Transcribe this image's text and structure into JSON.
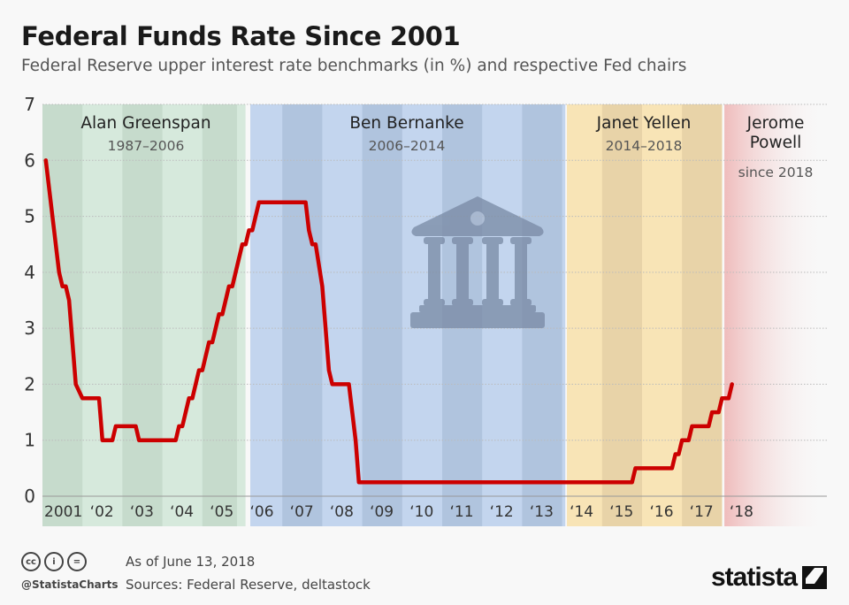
{
  "header": {
    "title": "Federal Funds Rate Since 2001",
    "subtitle": "Federal Reserve upper interest rate benchmarks (in %) and respective Fed chairs"
  },
  "chart_data": {
    "type": "line",
    "title": "Federal Funds Rate Since 2001",
    "xlabel": "",
    "ylabel": "",
    "ylim": [
      0,
      7
    ],
    "yticks": [
      "0",
      "1",
      "2",
      "3",
      "4",
      "5",
      "6",
      "7"
    ],
    "xticks": [
      "2001",
      "'02",
      "'03",
      "'04",
      "'05",
      "'06",
      "'07",
      "'08",
      "'09",
      "'10",
      "'11",
      "'12",
      "'13",
      "'14",
      "'15",
      "'16",
      "'17",
      "'18"
    ],
    "grid": true,
    "line_color": "#cc0000",
    "eras": [
      {
        "name": "Alan Greenspan",
        "term": "1987–2006",
        "color_light": "#d6e9dc",
        "color_dark": "#c6dbcc"
      },
      {
        "name": "Ben Bernanke",
        "term": "2006–2014",
        "color_light": "#c3d5ee",
        "color_dark": "#b0c4de"
      },
      {
        "name": "Janet Yellen",
        "term": "2014–2018",
        "color_light": "#f8e4b6",
        "color_dark": "#e8d3a8"
      },
      {
        "name_lines": [
          "Jerome",
          "Powell"
        ],
        "term": "since 2018",
        "color_light": "#f0c4c4",
        "color_dark": "#f0c4c4"
      }
    ],
    "series": [
      {
        "points": [
          [
            "2001-02",
            6.0
          ],
          [
            "2001-06",
            4.0
          ],
          [
            "2001-07",
            3.75
          ],
          [
            "2001-08",
            3.75
          ],
          [
            "2001-09",
            3.5
          ],
          [
            "2001-11",
            2.0
          ],
          [
            "2002-01",
            1.75
          ],
          [
            "2002-06",
            1.75
          ],
          [
            "2002-07",
            1.0
          ],
          [
            "2002-10",
            1.0
          ],
          [
            "2002-11",
            1.25
          ],
          [
            "2003-05",
            1.25
          ],
          [
            "2003-06",
            1.0
          ],
          [
            "2004-05",
            1.0
          ],
          [
            "2004-06",
            1.25
          ],
          [
            "2004-07",
            1.25
          ],
          [
            "2004-09",
            1.75
          ],
          [
            "2004-10",
            1.75
          ],
          [
            "2004-12",
            2.25
          ],
          [
            "2005-01",
            2.25
          ],
          [
            "2005-03",
            2.75
          ],
          [
            "2005-04",
            2.75
          ],
          [
            "2005-06",
            3.25
          ],
          [
            "2005-07",
            3.25
          ],
          [
            "2005-09",
            3.75
          ],
          [
            "2005-10",
            3.75
          ],
          [
            "2006-01",
            4.5
          ],
          [
            "2006-02",
            4.5
          ],
          [
            "2006-03",
            4.75
          ],
          [
            "2006-04",
            4.75
          ],
          [
            "2006-06",
            5.25
          ],
          [
            "2007-08",
            5.25
          ],
          [
            "2007-09",
            4.75
          ],
          [
            "2007-10",
            4.5
          ],
          [
            "2007-11",
            4.5
          ],
          [
            "2008-01",
            3.75
          ],
          [
            "2008-03",
            2.25
          ],
          [
            "2008-04",
            2.0
          ],
          [
            "2008-09",
            2.0
          ],
          [
            "2008-11",
            1.0
          ],
          [
            "2008-12",
            0.25
          ],
          [
            "2015-10",
            0.25
          ],
          [
            "2015-11",
            0.5
          ],
          [
            "2016-10",
            0.5
          ],
          [
            "2016-11",
            0.75
          ],
          [
            "2016-12",
            0.75
          ],
          [
            "2017-01",
            1.0
          ],
          [
            "2017-03",
            1.0
          ],
          [
            "2017-04",
            1.25
          ],
          [
            "2017-09",
            1.25
          ],
          [
            "2017-10",
            1.5
          ],
          [
            "2017-12",
            1.5
          ],
          [
            "2018-01",
            1.75
          ],
          [
            "2018-03",
            1.75
          ],
          [
            "2018-04",
            2.0
          ]
        ]
      }
    ],
    "icon": "bank-building-icon"
  },
  "footer": {
    "license_icons": [
      "cc-icon",
      "attribution-icon",
      "no-derivatives-icon"
    ],
    "cc_label": "cc",
    "by_label": "i",
    "nd_label": "=",
    "handle": "@StatistaCharts",
    "as_of": "As of June 13, 2018",
    "sources": "Sources: Federal Reserve, deltastock",
    "logo": "statista"
  }
}
